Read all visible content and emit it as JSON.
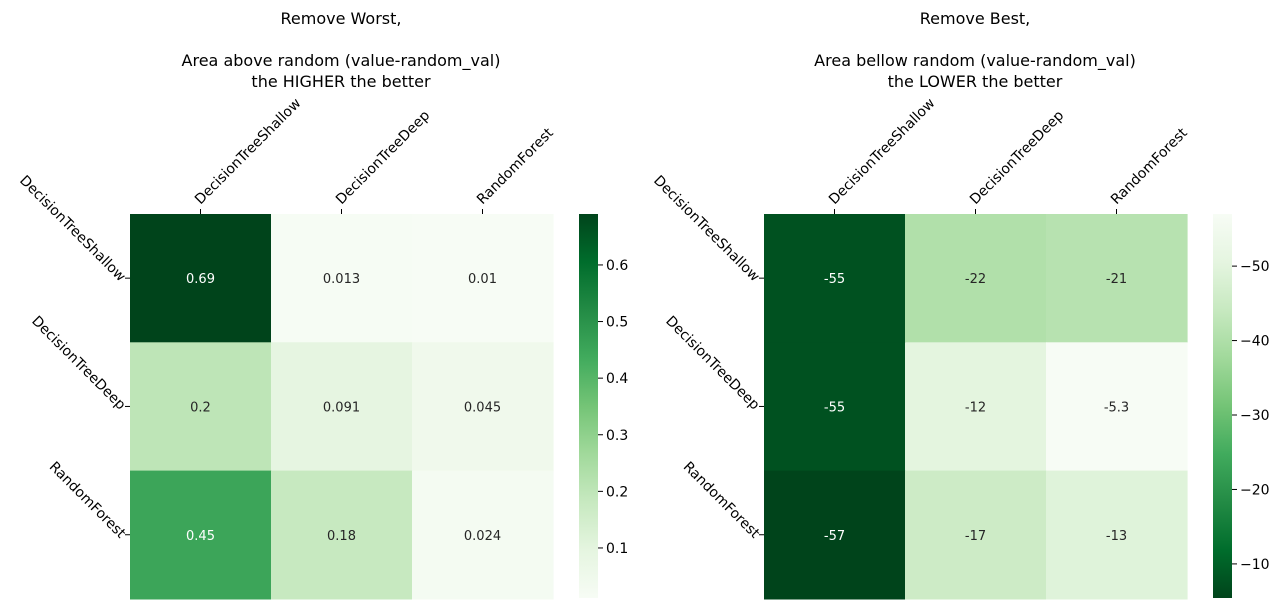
{
  "chart_data": [
    {
      "type": "heatmap",
      "title_lines": [
        "Remove Worst,",
        "",
        "Area above random (value-random_val)",
        "the HIGHER the better"
      ],
      "x_categories": [
        "DecisionTreeShallow",
        "DecisionTreeDeep",
        "RandomForest"
      ],
      "y_categories": [
        "DecisionTreeShallow",
        "DecisionTreeDeep",
        "RandomForest"
      ],
      "values": [
        [
          0.69,
          0.013,
          0.01
        ],
        [
          0.2,
          0.091,
          0.045
        ],
        [
          0.45,
          0.18,
          0.024
        ]
      ],
      "annotations": [
        [
          "0.69",
          "0.013",
          "0.01"
        ],
        [
          "0.2",
          "0.091",
          "0.045"
        ],
        [
          "0.45",
          "0.18",
          "0.024"
        ]
      ],
      "colormap": "Greens",
      "reversed": false,
      "vrange": [
        0.01,
        0.69
      ],
      "colorbar_ticks": [
        0.1,
        0.2,
        0.3,
        0.4,
        0.5,
        0.6
      ],
      "colorbar_tick_labels": [
        "0.1",
        "0.2",
        "0.3",
        "0.4",
        "0.5",
        "0.6"
      ],
      "x_ticks_position": "top"
    },
    {
      "type": "heatmap",
      "title_lines": [
        "Remove Best,",
        "",
        "Area bellow random (value-random_val)",
        "the LOWER the better"
      ],
      "x_categories": [
        "DecisionTreeShallow",
        "DecisionTreeDeep",
        "RandomForest"
      ],
      "y_categories": [
        "DecisionTreeShallow",
        "DecisionTreeDeep",
        "RandomForest"
      ],
      "values": [
        [
          -55,
          -22,
          -21
        ],
        [
          -55,
          -12,
          -5.3
        ],
        [
          -57,
          -17,
          -13
        ]
      ],
      "annotations": [
        [
          "-55",
          "-22",
          "-21"
        ],
        [
          "-55",
          "-12",
          "-5.3"
        ],
        [
          "-57",
          "-17",
          "-13"
        ]
      ],
      "colormap": "Greens",
      "reversed": true,
      "vrange": [
        -57,
        -5.3
      ],
      "colorbar_ticks": [
        -10,
        -20,
        -30,
        -40,
        -50
      ],
      "colorbar_tick_labels": [
        "−10",
        "−20",
        "−30",
        "−40",
        "−50"
      ],
      "x_ticks_position": "top"
    }
  ]
}
